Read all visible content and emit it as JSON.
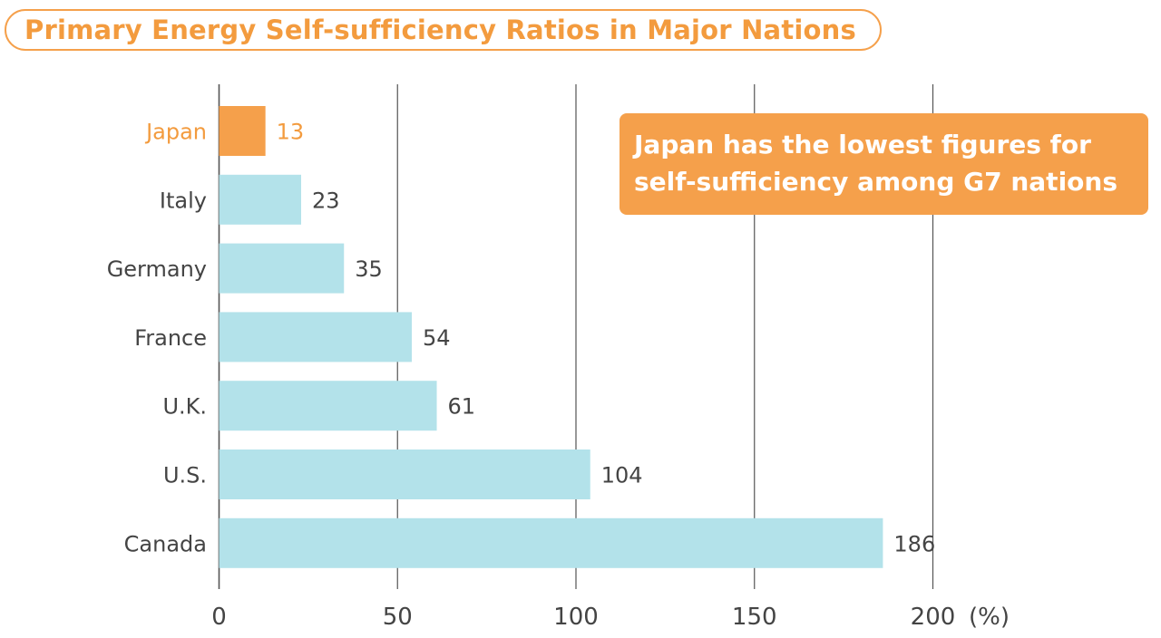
{
  "title": "Primary Energy Self-sufficiency Ratios in Major Nations",
  "callout": {
    "line1": "Japan has the lowest figures for",
    "line2": "self-sufficiency among G7 nations"
  },
  "colors": {
    "accent": "#f5a04b",
    "bar_default": "#b3e2ea",
    "bar_highlight": "#f5a04b",
    "text_dark": "#444444",
    "text_accent": "#f39b3e",
    "grid": "#555555"
  },
  "chart_data": {
    "type": "bar",
    "orientation": "horizontal",
    "categories": [
      "Japan",
      "Italy",
      "Germany",
      "France",
      "U.K.",
      "U.S.",
      "Canada"
    ],
    "values": [
      13,
      23,
      35,
      54,
      61,
      104,
      186
    ],
    "highlight": "Japan",
    "xlim": [
      0,
      200
    ],
    "xticks": [
      0,
      50,
      100,
      150,
      200
    ],
    "xunit": "(%)",
    "grid": true
  }
}
